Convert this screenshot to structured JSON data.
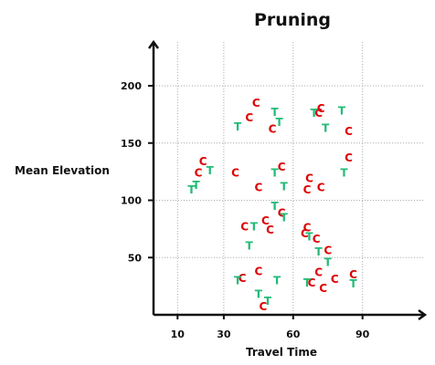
{
  "chart_data": {
    "type": "scatter",
    "title": "Pruning",
    "xlabel": "Travel Time",
    "ylabel": "Mean Elevation",
    "xlim": [
      0,
      100
    ],
    "ylim": [
      0,
      240
    ],
    "xticks": [
      10,
      30,
      60,
      90
    ],
    "yticks": [
      50,
      100,
      150,
      200
    ],
    "grid": true,
    "colors": {
      "C": "#dd0000",
      "T": "#22bb77"
    },
    "series": [
      {
        "marker": "C",
        "points": [
          [
            44,
            185
          ],
          [
            51,
            162
          ],
          [
            41,
            172
          ],
          [
            72,
            180
          ],
          [
            71,
            176
          ],
          [
            84,
            160
          ],
          [
            21,
            134
          ],
          [
            19,
            124
          ],
          [
            35,
            124
          ],
          [
            55,
            129
          ],
          [
            67,
            119
          ],
          [
            66,
            109
          ],
          [
            72,
            111
          ],
          [
            84,
            137
          ],
          [
            45,
            111
          ],
          [
            39,
            77
          ],
          [
            48,
            82
          ],
          [
            50,
            74
          ],
          [
            55,
            89
          ],
          [
            66,
            76
          ],
          [
            65,
            71
          ],
          [
            70,
            66
          ],
          [
            75,
            56
          ],
          [
            45,
            38
          ],
          [
            38,
            32
          ],
          [
            47,
            7
          ],
          [
            71,
            37
          ],
          [
            68,
            28
          ],
          [
            73,
            23
          ],
          [
            78,
            31
          ],
          [
            86,
            35
          ]
        ]
      },
      {
        "marker": "T",
        "points": [
          [
            52,
            177
          ],
          [
            54,
            168
          ],
          [
            36,
            164
          ],
          [
            69,
            176
          ],
          [
            81,
            178
          ],
          [
            74,
            163
          ],
          [
            24,
            126
          ],
          [
            18,
            113
          ],
          [
            16,
            109
          ],
          [
            52,
            124
          ],
          [
            56,
            112
          ],
          [
            82,
            124
          ],
          [
            52,
            95
          ],
          [
            56,
            85
          ],
          [
            43,
            77
          ],
          [
            41,
            60
          ],
          [
            67,
            68
          ],
          [
            71,
            55
          ],
          [
            75,
            46
          ],
          [
            36,
            30
          ],
          [
            53,
            30
          ],
          [
            45,
            18
          ],
          [
            49,
            12
          ],
          [
            66,
            28
          ],
          [
            86,
            27
          ]
        ]
      }
    ]
  }
}
